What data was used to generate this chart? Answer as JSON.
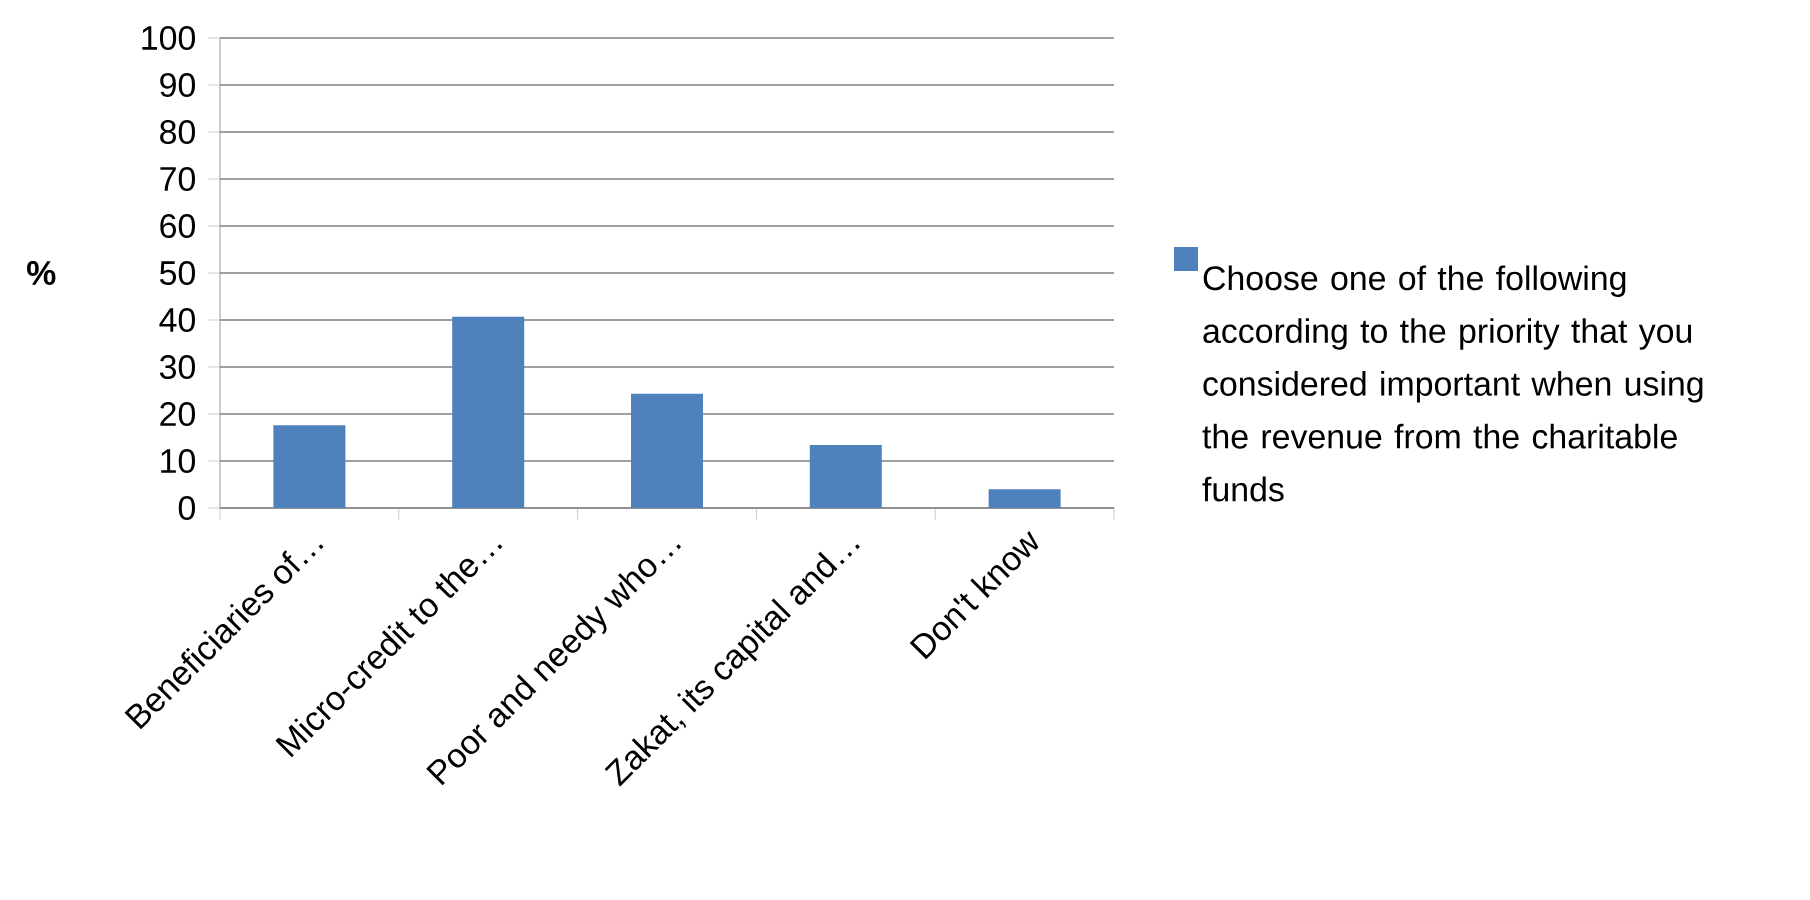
{
  "chart_data": {
    "type": "bar",
    "ylabel": "%",
    "categories": [
      "Beneficiaries of…",
      "Micro-credit to the…",
      "Poor and needy who…",
      "Zakat, its capital and…",
      "Don't know"
    ],
    "series": [
      {
        "name": "Choose one of the following according to the priority that you considered important when using the revenue from the charitable funds",
        "color": "#4f81bd",
        "values": [
          17.6,
          40.7,
          24.3,
          13.4,
          4.0
        ]
      }
    ],
    "ylim": [
      0,
      100
    ],
    "yticks": [
      0,
      10,
      20,
      30,
      40,
      50,
      60,
      70,
      80,
      90,
      100
    ],
    "grid": "y",
    "legend": "right"
  }
}
